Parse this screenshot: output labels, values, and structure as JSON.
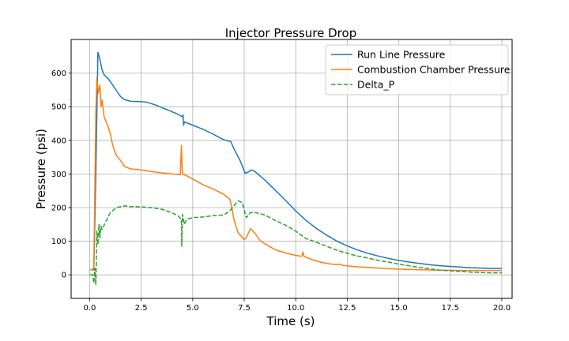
{
  "chart_data": {
    "type": "line",
    "title": "Injector Pressure Drop",
    "xlabel": "Time (s)",
    "ylabel": "Pressure (psi)",
    "xlim": [
      -0.9,
      20.5
    ],
    "ylim": [
      -70,
      700
    ],
    "xticks": [
      0.0,
      2.5,
      5.0,
      7.5,
      10.0,
      12.5,
      15.0,
      17.5,
      20.0
    ],
    "xtick_labels": [
      "0.0",
      "2.5",
      "5.0",
      "7.5",
      "10.0",
      "12.5",
      "15.0",
      "17.5",
      "20.0"
    ],
    "yticks": [
      0,
      100,
      200,
      300,
      400,
      500,
      600
    ],
    "ytick_labels": [
      "0",
      "100",
      "200",
      "300",
      "400",
      "500",
      "600"
    ],
    "grid": true,
    "legend_position": "top-right",
    "series": [
      {
        "name": "Run Line Pressure",
        "color": "#1f77b4",
        "dash": "solid",
        "points": [
          [
            0.0,
            15
          ],
          [
            0.1,
            15
          ],
          [
            0.2,
            15
          ],
          [
            0.3,
            300
          ],
          [
            0.4,
            662
          ],
          [
            0.5,
            640
          ],
          [
            0.6,
            610
          ],
          [
            0.7,
            595
          ],
          [
            0.9,
            583
          ],
          [
            1.1,
            566
          ],
          [
            1.3,
            548
          ],
          [
            1.5,
            530
          ],
          [
            1.7,
            521
          ],
          [
            2.0,
            516
          ],
          [
            2.5,
            515
          ],
          [
            2.8,
            513
          ],
          [
            3.2,
            505
          ],
          [
            3.6,
            495
          ],
          [
            4.0,
            485
          ],
          [
            4.3,
            477
          ],
          [
            4.5,
            470
          ],
          [
            4.53,
            476
          ],
          [
            4.56,
            445
          ],
          [
            4.6,
            455
          ],
          [
            5.0,
            445
          ],
          [
            5.5,
            433
          ],
          [
            6.0,
            418
          ],
          [
            6.5,
            402
          ],
          [
            6.85,
            396
          ],
          [
            7.0,
            375
          ],
          [
            7.3,
            340
          ],
          [
            7.55,
            302
          ],
          [
            7.7,
            306
          ],
          [
            7.85,
            312
          ],
          [
            8.0,
            308
          ],
          [
            8.5,
            282
          ],
          [
            9.0,
            252
          ],
          [
            9.5,
            222
          ],
          [
            10.0,
            190
          ],
          [
            10.5,
            162
          ],
          [
            11.0,
            138
          ],
          [
            11.5,
            118
          ],
          [
            12.0,
            100
          ],
          [
            12.5,
            86
          ],
          [
            13.0,
            74
          ],
          [
            13.5,
            64
          ],
          [
            14.0,
            56
          ],
          [
            14.5,
            49
          ],
          [
            15.0,
            43
          ],
          [
            15.5,
            38
          ],
          [
            16.0,
            34
          ],
          [
            16.5,
            30
          ],
          [
            17.0,
            27
          ],
          [
            17.5,
            25
          ],
          [
            18.0,
            23
          ],
          [
            18.5,
            21
          ],
          [
            19.0,
            20
          ],
          [
            19.5,
            19
          ],
          [
            20.0,
            19
          ]
        ]
      },
      {
        "name": "Combustion Chamber Pressure",
        "color": "#ff7f0e",
        "dash": "solid",
        "points": [
          [
            0.0,
            15
          ],
          [
            0.1,
            15
          ],
          [
            0.2,
            20
          ],
          [
            0.3,
            480
          ],
          [
            0.35,
            585
          ],
          [
            0.42,
            540
          ],
          [
            0.5,
            565
          ],
          [
            0.55,
            500
          ],
          [
            0.6,
            520
          ],
          [
            0.7,
            470
          ],
          [
            0.8,
            455
          ],
          [
            0.9,
            440
          ],
          [
            1.0,
            420
          ],
          [
            1.1,
            390
          ],
          [
            1.2,
            370
          ],
          [
            1.3,
            355
          ],
          [
            1.5,
            340
          ],
          [
            1.7,
            322
          ],
          [
            2.0,
            315
          ],
          [
            2.5,
            312
          ],
          [
            3.0,
            307
          ],
          [
            3.5,
            303
          ],
          [
            4.0,
            300
          ],
          [
            4.4,
            298
          ],
          [
            4.45,
            385
          ],
          [
            4.5,
            300
          ],
          [
            4.7,
            295
          ],
          [
            5.0,
            285
          ],
          [
            5.5,
            268
          ],
          [
            6.0,
            255
          ],
          [
            6.5,
            240
          ],
          [
            6.8,
            225
          ],
          [
            6.9,
            200
          ],
          [
            7.0,
            165
          ],
          [
            7.2,
            125
          ],
          [
            7.5,
            105
          ],
          [
            7.6,
            110
          ],
          [
            7.8,
            138
          ],
          [
            8.0,
            125
          ],
          [
            8.3,
            100
          ],
          [
            8.7,
            85
          ],
          [
            9.0,
            75
          ],
          [
            9.5,
            65
          ],
          [
            10.0,
            58
          ],
          [
            10.3,
            55
          ],
          [
            10.35,
            68
          ],
          [
            10.4,
            55
          ],
          [
            10.8,
            45
          ],
          [
            11.2,
            38
          ],
          [
            11.6,
            33
          ],
          [
            12.0,
            30
          ],
          [
            12.1,
            32
          ],
          [
            12.3,
            28
          ],
          [
            13.0,
            24
          ],
          [
            14.0,
            20
          ],
          [
            15.0,
            17
          ],
          [
            16.0,
            15
          ],
          [
            17.0,
            14
          ],
          [
            18.0,
            13
          ],
          [
            19.0,
            13
          ],
          [
            20.0,
            13
          ]
        ]
      },
      {
        "name": "Delta_P",
        "color": "#2ca02c",
        "dash": "dashed",
        "points": [
          [
            0.0,
            0
          ],
          [
            0.15,
            0
          ],
          [
            0.2,
            -25
          ],
          [
            0.25,
            20
          ],
          [
            0.3,
            -30
          ],
          [
            0.35,
            130
          ],
          [
            0.4,
            90
          ],
          [
            0.45,
            150
          ],
          [
            0.5,
            110
          ],
          [
            0.55,
            145
          ],
          [
            0.6,
            135
          ],
          [
            0.8,
            160
          ],
          [
            1.0,
            185
          ],
          [
            1.3,
            200
          ],
          [
            1.7,
            205
          ],
          [
            2.0,
            203
          ],
          [
            2.5,
            202
          ],
          [
            3.0,
            200
          ],
          [
            3.5,
            195
          ],
          [
            4.0,
            185
          ],
          [
            4.3,
            175
          ],
          [
            4.45,
            165
          ],
          [
            4.47,
            85
          ],
          [
            4.5,
            180
          ],
          [
            4.6,
            150
          ],
          [
            4.7,
            165
          ],
          [
            5.0,
            170
          ],
          [
            5.5,
            172
          ],
          [
            6.0,
            176
          ],
          [
            6.5,
            178
          ],
          [
            6.8,
            190
          ],
          [
            7.0,
            205
          ],
          [
            7.2,
            220
          ],
          [
            7.4,
            215
          ],
          [
            7.6,
            170
          ],
          [
            7.8,
            185
          ],
          [
            8.0,
            186
          ],
          [
            8.5,
            178
          ],
          [
            9.0,
            162
          ],
          [
            9.5,
            148
          ],
          [
            10.0,
            130
          ],
          [
            10.5,
            108
          ],
          [
            11.0,
            97
          ],
          [
            11.5,
            85
          ],
          [
            12.0,
            73
          ],
          [
            12.5,
            64
          ],
          [
            13.0,
            56
          ],
          [
            13.5,
            50
          ],
          [
            14.0,
            43
          ],
          [
            14.5,
            38
          ],
          [
            15.0,
            32
          ],
          [
            15.5,
            27
          ],
          [
            16.0,
            22
          ],
          [
            16.5,
            18
          ],
          [
            17.0,
            14
          ],
          [
            17.5,
            12
          ],
          [
            18.0,
            10
          ],
          [
            18.5,
            8
          ],
          [
            19.0,
            7
          ],
          [
            19.5,
            6
          ],
          [
            20.0,
            6
          ]
        ]
      }
    ]
  }
}
